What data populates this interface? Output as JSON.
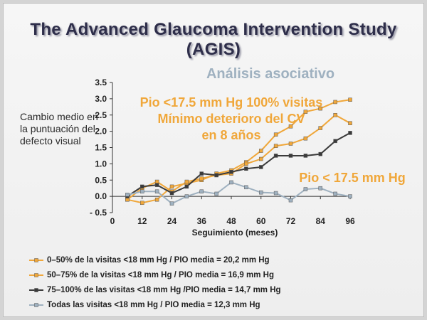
{
  "title_line1": "The Advanced Glaucoma Intervention Study",
  "title_line2": "(AGIS)",
  "subtitle": "Análisis asociativo",
  "annotation_main_line1": "Pio <17.5 mm Hg 100% visitas",
  "annotation_main_line2": "Mínimo deterioro del CV",
  "annotation_main_line3": "en 8 años",
  "annotation_secondary": "Pio < 17.5 mm Hg",
  "chart_data": {
    "type": "line",
    "ylabel": "Cambio medio en la puntuación del defecto visual",
    "xlabel": "Seguimiento (meses)",
    "xlim": [
      0,
      96
    ],
    "ylim": [
      -0.5,
      3.5
    ],
    "xticks": [
      "0",
      "12",
      "24",
      "36",
      "48",
      "60",
      "72",
      "84",
      "96"
    ],
    "yticks": [
      "3.5",
      "3.0",
      "2.5",
      "2.0",
      "1.5",
      "1.0",
      "0.5",
      "0.0",
      "- 0.5"
    ],
    "x": [
      6,
      12,
      18,
      24,
      30,
      36,
      42,
      48,
      54,
      60,
      66,
      72,
      78,
      84,
      90,
      96
    ],
    "series": [
      {
        "name": "0–50% de la visitas <18 mm Hg / PIO media = 20,2 mm Hg",
        "color": "#f0a73a",
        "marker": "square",
        "values": [
          -0.1,
          -0.2,
          -0.1,
          0.3,
          0.4,
          0.5,
          0.7,
          0.8,
          1.05,
          1.4,
          1.9,
          2.15,
          2.6,
          2.7,
          2.9,
          2.97
        ]
      },
      {
        "name": "50–75% de la visitas <18 mm Hg / PIO media = 16,9 mm Hg",
        "color": "#f0a73a",
        "marker": "square",
        "values": [
          -0.1,
          0.25,
          0.45,
          0.15,
          0.45,
          0.55,
          0.65,
          0.7,
          1.0,
          1.15,
          1.55,
          1.62,
          1.78,
          2.1,
          2.5,
          2.25
        ]
      },
      {
        "name": "75–100% de las visitas <18 mm Hg /PIO media = 14,7 mm Hg",
        "color": "#3a3a3a",
        "marker": "square",
        "values": [
          0.0,
          0.3,
          0.35,
          0.1,
          0.3,
          0.7,
          0.65,
          0.75,
          0.85,
          0.9,
          1.25,
          1.25,
          1.25,
          1.3,
          1.7,
          1.95
        ]
      },
      {
        "name": "Todas las visitas <18 mm Hg / PIO media = 12,3 mm Hg",
        "color": "#9fb1c0",
        "marker": "square",
        "values": [
          0.05,
          0.15,
          0.15,
          -0.22,
          0.0,
          0.15,
          0.08,
          0.43,
          0.28,
          0.12,
          0.1,
          -0.12,
          0.22,
          0.25,
          0.08,
          0.0
        ]
      }
    ],
    "grid": false,
    "legend_position": "bottom"
  }
}
